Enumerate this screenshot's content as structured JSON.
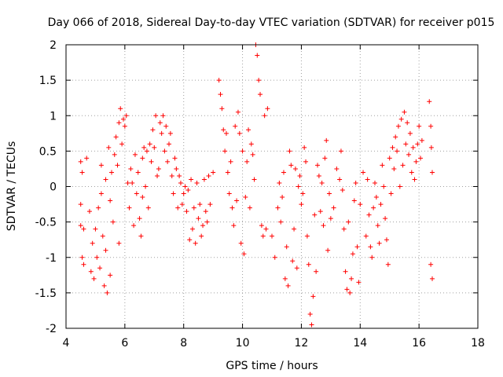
{
  "chart_data": {
    "type": "scatter",
    "title": "Day 066 of 2018, Sidereal Day-to-day VTEC variation (SDTVAR) for receiver p015",
    "xlabel": "GPS time / hours",
    "ylabel": "SDTVAR / TECUs",
    "xlim": [
      4,
      18
    ],
    "ylim": [
      -2,
      2
    ],
    "xticks": [
      4,
      6,
      8,
      10,
      12,
      14,
      16,
      18
    ],
    "yticks": [
      -2,
      -1.5,
      -1,
      -0.5,
      0,
      0.5,
      1,
      1.5,
      2
    ],
    "xtick_labels": [
      "4",
      "6",
      "8",
      "10",
      "12",
      "14",
      "16",
      "18"
    ],
    "ytick_labels": [
      "-2",
      "-1.5",
      "-1",
      "-0.5",
      "0",
      "0.5",
      "1",
      "1.5",
      "2"
    ],
    "grid": true,
    "marker": "+",
    "marker_color": "#ff0000",
    "series": [
      {
        "name": "p015",
        "points": [
          [
            4.5,
            0.35
          ],
          [
            4.5,
            -0.25
          ],
          [
            4.5,
            -0.55
          ],
          [
            4.55,
            -1.0
          ],
          [
            4.55,
            0.2
          ],
          [
            4.6,
            -0.6
          ],
          [
            4.6,
            -1.1
          ],
          [
            4.7,
            0.4
          ],
          [
            4.8,
            -0.35
          ],
          [
            4.85,
            -1.2
          ],
          [
            4.9,
            -0.8
          ],
          [
            4.95,
            -1.3
          ],
          [
            5.0,
            -0.6
          ],
          [
            5.05,
            -1.0
          ],
          [
            5.1,
            -0.3
          ],
          [
            5.15,
            -1.15
          ],
          [
            5.2,
            0.3
          ],
          [
            5.2,
            -0.1
          ],
          [
            5.25,
            -0.7
          ],
          [
            5.3,
            -1.4
          ],
          [
            5.35,
            0.1
          ],
          [
            5.35,
            -0.9
          ],
          [
            5.4,
            -1.5
          ],
          [
            5.45,
            0.55
          ],
          [
            5.5,
            -0.2
          ],
          [
            5.5,
            -1.25
          ],
          [
            5.55,
            0.2
          ],
          [
            5.6,
            -0.5
          ],
          [
            5.65,
            0.45
          ],
          [
            5.7,
            0.7
          ],
          [
            5.75,
            0.3
          ],
          [
            5.8,
            -0.8
          ],
          [
            5.8,
            0.9
          ],
          [
            5.85,
            1.1
          ],
          [
            5.9,
            0.6
          ],
          [
            5.95,
            0.95
          ],
          [
            6.0,
            0.85
          ],
          [
            6.05,
            1.0
          ],
          [
            6.1,
            0.05
          ],
          [
            6.15,
            -0.3
          ],
          [
            6.2,
            0.25
          ],
          [
            6.25,
            0.05
          ],
          [
            6.3,
            -0.55
          ],
          [
            6.35,
            0.45
          ],
          [
            6.4,
            -0.1
          ],
          [
            6.45,
            0.2
          ],
          [
            6.5,
            -0.45
          ],
          [
            6.55,
            -0.7
          ],
          [
            6.6,
            0.4
          ],
          [
            6.6,
            -0.15
          ],
          [
            6.65,
            0.55
          ],
          [
            6.7,
            0.0
          ],
          [
            6.75,
            0.5
          ],
          [
            6.8,
            -0.3
          ],
          [
            6.85,
            0.6
          ],
          [
            6.9,
            0.35
          ],
          [
            6.95,
            0.8
          ],
          [
            7.0,
            0.55
          ],
          [
            7.05,
            1.0
          ],
          [
            7.1,
            0.15
          ],
          [
            7.15,
            0.25
          ],
          [
            7.2,
            0.9
          ],
          [
            7.25,
            0.75
          ],
          [
            7.3,
            1.0
          ],
          [
            7.35,
            0.5
          ],
          [
            7.4,
            0.85
          ],
          [
            7.45,
            0.35
          ],
          [
            7.5,
            0.6
          ],
          [
            7.55,
            0.75
          ],
          [
            7.6,
            0.15
          ],
          [
            7.65,
            -0.1
          ],
          [
            7.7,
            0.4
          ],
          [
            7.75,
            0.25
          ],
          [
            7.8,
            -0.3
          ],
          [
            7.85,
            0.15
          ],
          [
            7.9,
            0.05
          ],
          [
            7.95,
            -0.25
          ],
          [
            8.0,
            -0.1
          ],
          [
            8.05,
            0.0
          ],
          [
            8.1,
            -0.35
          ],
          [
            8.15,
            -0.05
          ],
          [
            8.2,
            -0.75
          ],
          [
            8.25,
            0.1
          ],
          [
            8.3,
            -0.6
          ],
          [
            8.35,
            -0.3
          ],
          [
            8.4,
            -0.8
          ],
          [
            8.45,
            0.05
          ],
          [
            8.5,
            -0.45
          ],
          [
            8.55,
            -0.25
          ],
          [
            8.6,
            -0.7
          ],
          [
            8.65,
            -0.55
          ],
          [
            8.7,
            0.1
          ],
          [
            8.75,
            -0.35
          ],
          [
            8.8,
            -0.5
          ],
          [
            8.85,
            0.15
          ],
          [
            8.9,
            -0.25
          ],
          [
            9.0,
            0.2
          ],
          [
            9.2,
            1.5
          ],
          [
            9.25,
            1.3
          ],
          [
            9.3,
            1.1
          ],
          [
            9.35,
            0.8
          ],
          [
            9.4,
            0.5
          ],
          [
            9.45,
            0.75
          ],
          [
            9.5,
            0.2
          ],
          [
            9.55,
            -0.1
          ],
          [
            9.6,
            0.35
          ],
          [
            9.65,
            -0.3
          ],
          [
            9.7,
            -0.55
          ],
          [
            9.75,
            0.85
          ],
          [
            9.8,
            -0.2
          ],
          [
            9.85,
            1.05
          ],
          [
            9.9,
            0.75
          ],
          [
            9.95,
            -0.8
          ],
          [
            10.0,
            0.5
          ],
          [
            10.05,
            -0.95
          ],
          [
            10.1,
            -0.15
          ],
          [
            10.15,
            0.35
          ],
          [
            10.2,
            0.8
          ],
          [
            10.25,
            -0.3
          ],
          [
            10.3,
            0.6
          ],
          [
            10.35,
            0.45
          ],
          [
            10.4,
            0.1
          ],
          [
            10.45,
            2.0
          ],
          [
            10.5,
            1.85
          ],
          [
            10.55,
            1.5
          ],
          [
            10.6,
            1.3
          ],
          [
            10.65,
            -0.55
          ],
          [
            10.7,
            -0.7
          ],
          [
            10.75,
            1.0
          ],
          [
            10.8,
            -0.6
          ],
          [
            10.85,
            1.1
          ],
          [
            11.0,
            -0.7
          ],
          [
            11.1,
            -1.0
          ],
          [
            11.2,
            -0.3
          ],
          [
            11.25,
            0.05
          ],
          [
            11.3,
            -0.5
          ],
          [
            11.35,
            -0.15
          ],
          [
            11.4,
            0.2
          ],
          [
            11.45,
            -1.3
          ],
          [
            11.5,
            -0.85
          ],
          [
            11.55,
            -1.4
          ],
          [
            11.6,
            0.5
          ],
          [
            11.65,
            0.3
          ],
          [
            11.7,
            -1.05
          ],
          [
            11.75,
            -0.6
          ],
          [
            11.8,
            0.25
          ],
          [
            11.85,
            -1.15
          ],
          [
            11.9,
            0.0
          ],
          [
            11.95,
            0.15
          ],
          [
            12.0,
            -0.25
          ],
          [
            12.05,
            -0.1
          ],
          [
            12.1,
            0.55
          ],
          [
            12.15,
            0.35
          ],
          [
            12.2,
            -0.7
          ],
          [
            12.25,
            -1.1
          ],
          [
            12.3,
            -1.8
          ],
          [
            12.35,
            -1.95
          ],
          [
            12.4,
            -1.55
          ],
          [
            12.45,
            -0.4
          ],
          [
            12.5,
            -1.2
          ],
          [
            12.55,
            0.3
          ],
          [
            12.6,
            0.15
          ],
          [
            12.65,
            -0.35
          ],
          [
            12.7,
            0.05
          ],
          [
            12.75,
            -0.55
          ],
          [
            12.8,
            0.4
          ],
          [
            12.85,
            0.65
          ],
          [
            12.9,
            -0.9
          ],
          [
            12.95,
            -0.1
          ],
          [
            13.0,
            -0.45
          ],
          [
            13.1,
            -0.3
          ],
          [
            13.2,
            0.25
          ],
          [
            13.3,
            0.1
          ],
          [
            13.35,
            0.5
          ],
          [
            13.4,
            -0.05
          ],
          [
            13.45,
            -0.6
          ],
          [
            13.5,
            -1.2
          ],
          [
            13.55,
            -1.45
          ],
          [
            13.6,
            -0.5
          ],
          [
            13.65,
            -1.5
          ],
          [
            13.7,
            -1.3
          ],
          [
            13.75,
            -0.95
          ],
          [
            13.8,
            -0.2
          ],
          [
            13.85,
            0.05
          ],
          [
            13.9,
            -0.85
          ],
          [
            13.95,
            -1.35
          ],
          [
            14.0,
            -0.25
          ],
          [
            14.1,
            0.2
          ],
          [
            14.2,
            -0.7
          ],
          [
            14.25,
            0.1
          ],
          [
            14.3,
            -0.4
          ],
          [
            14.35,
            -0.85
          ],
          [
            14.4,
            -1.0
          ],
          [
            14.45,
            -0.3
          ],
          [
            14.5,
            0.05
          ],
          [
            14.55,
            -0.15
          ],
          [
            14.6,
            -0.55
          ],
          [
            14.65,
            -0.8
          ],
          [
            14.7,
            -0.25
          ],
          [
            14.75,
            0.3
          ],
          [
            14.8,
            0.0
          ],
          [
            14.85,
            -0.45
          ],
          [
            14.9,
            -0.75
          ],
          [
            14.95,
            -1.1
          ],
          [
            15.0,
            0.4
          ],
          [
            15.05,
            -0.1
          ],
          [
            15.1,
            0.55
          ],
          [
            15.15,
            0.25
          ],
          [
            15.2,
            0.7
          ],
          [
            15.25,
            0.5
          ],
          [
            15.3,
            0.85
          ],
          [
            15.35,
            0.0
          ],
          [
            15.4,
            0.95
          ],
          [
            15.45,
            0.3
          ],
          [
            15.5,
            1.05
          ],
          [
            15.55,
            0.6
          ],
          [
            15.6,
            0.9
          ],
          [
            15.65,
            0.45
          ],
          [
            15.7,
            0.75
          ],
          [
            15.75,
            0.2
          ],
          [
            15.8,
            0.55
          ],
          [
            15.85,
            0.1
          ],
          [
            15.9,
            0.35
          ],
          [
            15.95,
            0.6
          ],
          [
            16.0,
            0.85
          ],
          [
            16.05,
            0.4
          ],
          [
            16.1,
            0.65
          ],
          [
            16.35,
            1.2
          ],
          [
            16.4,
            0.85
          ],
          [
            16.42,
            0.55
          ],
          [
            16.45,
            0.2
          ],
          [
            16.4,
            -1.1
          ],
          [
            16.45,
            -1.3
          ]
        ]
      }
    ]
  }
}
